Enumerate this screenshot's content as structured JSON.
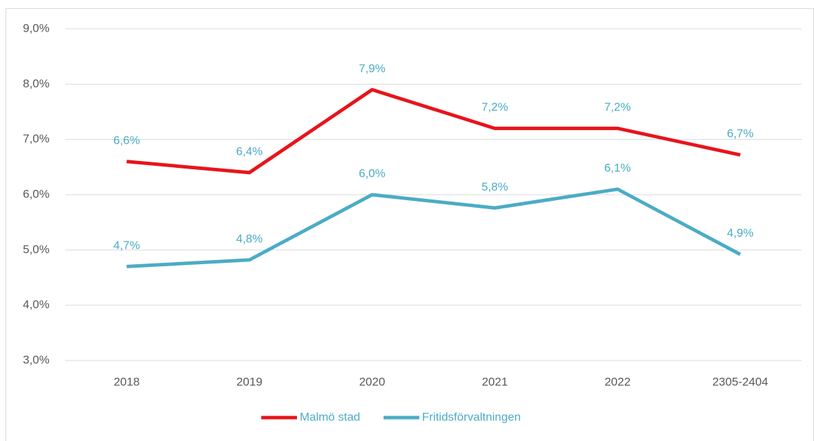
{
  "chart_data": {
    "type": "line",
    "categories": [
      "2018",
      "2019",
      "2020",
      "2021",
      "2022",
      "2305-2404"
    ],
    "series": [
      {
        "name": "Malmö stad",
        "color": "#e8141b",
        "values": [
          6.6,
          6.4,
          7.9,
          7.2,
          7.2,
          6.72
        ],
        "value_labels": [
          "6,6%",
          "6,4%",
          "7,9%",
          "7,2%",
          "7,2%",
          "6,7%"
        ]
      },
      {
        "name": "Fritidsförvaltningen",
        "color": "#4bacc6",
        "values": [
          4.7,
          4.82,
          6.0,
          5.76,
          6.1,
          4.92
        ],
        "value_labels": [
          "4,7%",
          "4,8%",
          "6,0%",
          "5,8%",
          "6,1%",
          "4,9%"
        ]
      }
    ],
    "ylim": [
      3,
      9
    ],
    "yticks": [
      {
        "value": 3,
        "label": "3,0%"
      },
      {
        "value": 4,
        "label": "4,0%"
      },
      {
        "value": 5,
        "label": "5,0%"
      },
      {
        "value": 6,
        "label": "6,0%"
      },
      {
        "value": 7,
        "label": "7,0%"
      },
      {
        "value": 8,
        "label": "8,0%"
      },
      {
        "value": 9,
        "label": "9,0%"
      }
    ],
    "grid": true,
    "legend": "bottom"
  }
}
